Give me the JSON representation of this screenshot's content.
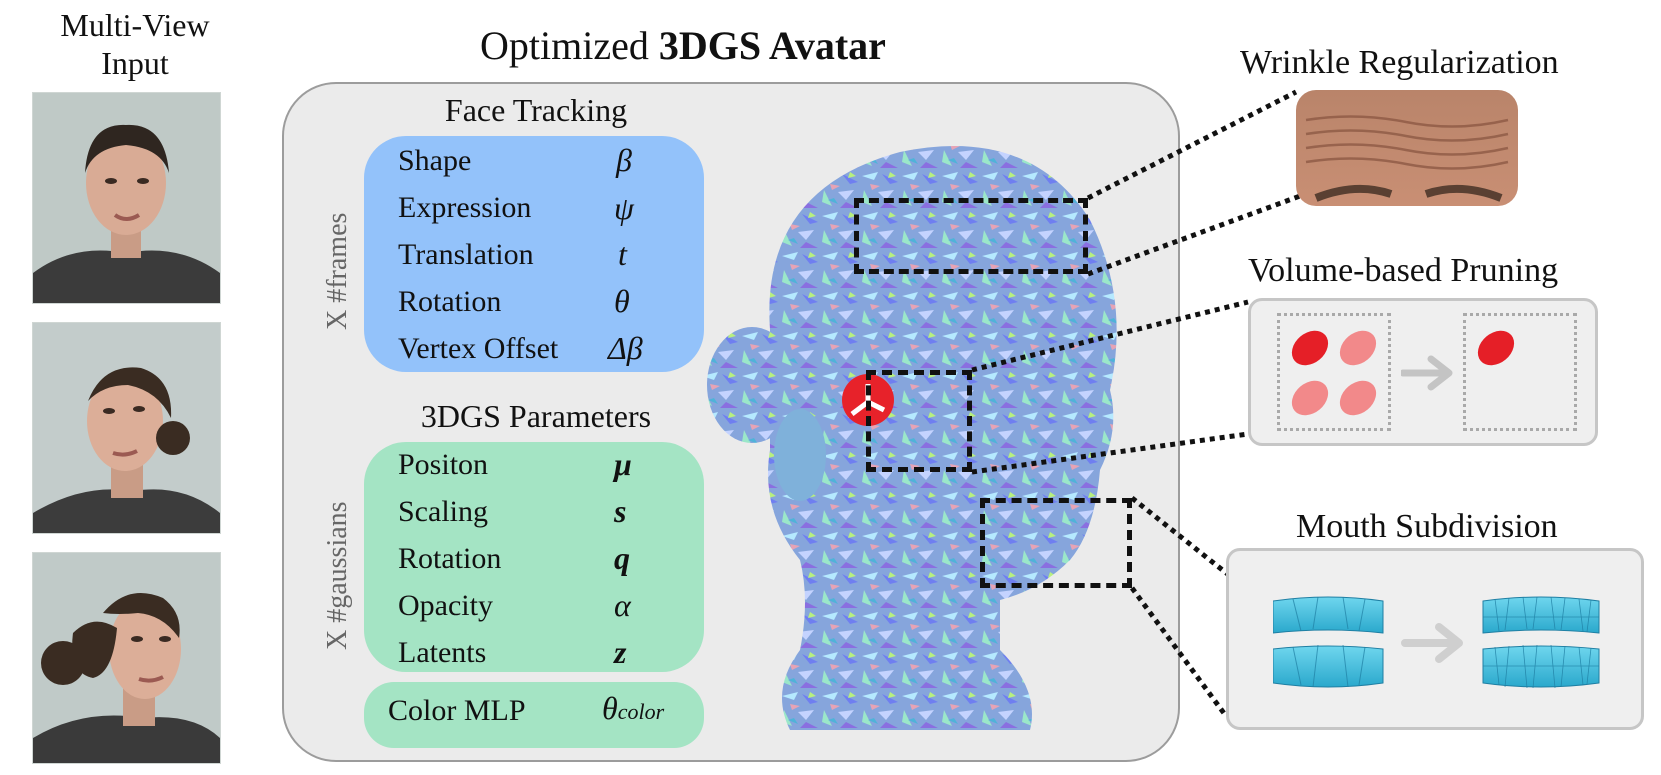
{
  "input": {
    "title_line1": "Multi-View",
    "title_line2": "Input"
  },
  "main": {
    "title_regular": "Optimized ",
    "title_bold": "3DGS Avatar"
  },
  "face_tracking": {
    "title": "Face Tracking",
    "multiplier": "X  #frames",
    "rows": [
      {
        "label": "Shape",
        "symbol": "β"
      },
      {
        "label": "Expression",
        "symbol": "ψ"
      },
      {
        "label": "Translation",
        "symbol": "t"
      },
      {
        "label": "Rotation",
        "symbol": "θ"
      },
      {
        "label": "Vertex Offset",
        "symbol": "Δβ"
      }
    ]
  },
  "gs_params": {
    "title": "3DGS Parameters",
    "multiplier": "X  #gaussians",
    "rows": [
      {
        "label": "Positon",
        "symbol": "μ"
      },
      {
        "label": "Scaling",
        "symbol": "s"
      },
      {
        "label": "Rotation",
        "symbol": "q"
      },
      {
        "label": "Opacity",
        "symbol": "α"
      },
      {
        "label": "Latents",
        "symbol": "z"
      }
    ]
  },
  "color_mlp": {
    "label": "Color MLP",
    "symbol": "θ",
    "subscript": "color"
  },
  "regularizers": {
    "wrinkle": "Wrinkle Regularization",
    "pruning": "Volume-based Pruning",
    "mouth": "Mouth Subdivision"
  },
  "colors": {
    "face_tracking_box": "#93c2fa",
    "gs_params_box": "#a4e4c4",
    "panel": "#ebebeb",
    "gaussian_red": "#e8222a",
    "mouth_mesh": "#3fc0dd"
  }
}
